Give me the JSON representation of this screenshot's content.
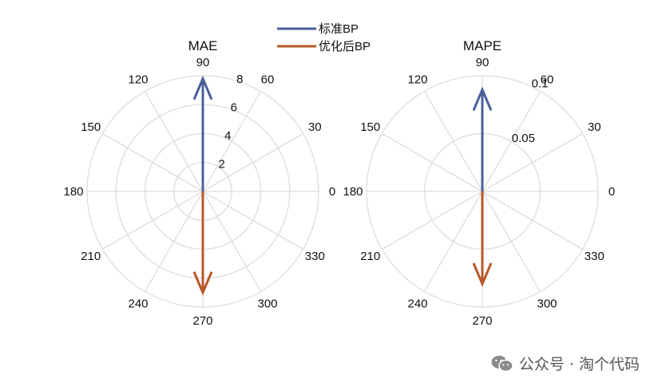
{
  "legend": {
    "placement": "top-center",
    "items": [
      {
        "label": "标准BP",
        "color": "#4a5f9a"
      },
      {
        "label": "优化后BP",
        "color": "#b8582a"
      }
    ]
  },
  "chart_data": [
    {
      "type": "polar",
      "title": "MAE",
      "rlim": [
        0,
        8
      ],
      "r_ticks": [
        2,
        4,
        6,
        8
      ],
      "r_tick_labels": [
        "2",
        "4",
        "6",
        "8"
      ],
      "theta_ticks": [
        0,
        30,
        60,
        90,
        120,
        150,
        180,
        210,
        240,
        270,
        300,
        330
      ],
      "grid": true,
      "series": [
        {
          "name": "标准BP",
          "theta": 90,
          "r": 7.8,
          "color": "#4a5f9a"
        },
        {
          "name": "优化后BP",
          "theta": 270,
          "r": 7.0,
          "color": "#b8582a"
        }
      ]
    },
    {
      "type": "polar",
      "title": "MAPE",
      "rlim": [
        0,
        0.1
      ],
      "r_ticks": [
        0.05,
        0.1
      ],
      "r_tick_labels": [
        "0.05",
        "0.1"
      ],
      "theta_ticks": [
        0,
        30,
        60,
        90,
        120,
        150,
        180,
        210,
        240,
        270,
        300,
        330
      ],
      "grid": true,
      "series": [
        {
          "name": "标准BP",
          "theta": 90,
          "r": 0.088,
          "color": "#4a5f9a"
        },
        {
          "name": "优化后BP",
          "theta": 270,
          "r": 0.08,
          "color": "#b8582a"
        }
      ]
    }
  ],
  "watermark": {
    "icon": "wechat-icon",
    "text": "公众号 · 淘个代码"
  }
}
